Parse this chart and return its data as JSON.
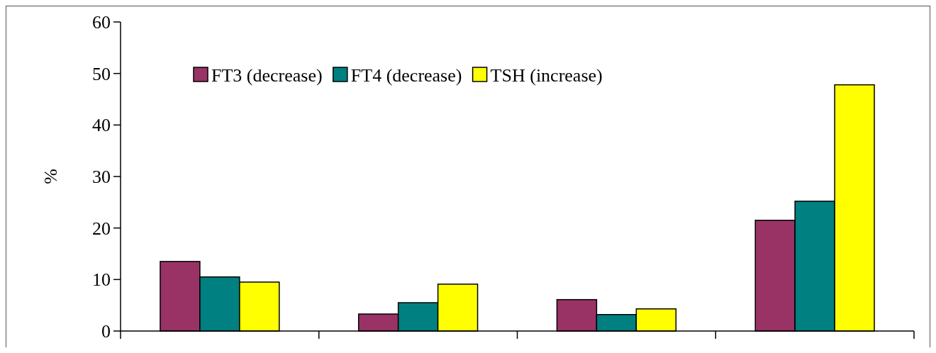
{
  "chart_data": {
    "type": "bar",
    "ylabel": "%",
    "categories": [
      null,
      null,
      null,
      null
    ],
    "series": [
      {
        "name": "FT3 (decrease)",
        "color": "#993366",
        "values": [
          13.5,
          3.3,
          6.1,
          21.5
        ]
      },
      {
        "name": "FT4 (decrease)",
        "color": "#008080",
        "values": [
          10.5,
          5.5,
          3.2,
          25.2
        ]
      },
      {
        "name": "TSH (increase)",
        "color": "#ffff00",
        "values": [
          9.5,
          9.1,
          4.3,
          47.8
        ]
      }
    ],
    "ylim": [
      0,
      60
    ],
    "yticks": [
      0,
      10,
      20,
      30,
      40,
      50,
      60
    ],
    "grid": false,
    "legend": "top"
  }
}
